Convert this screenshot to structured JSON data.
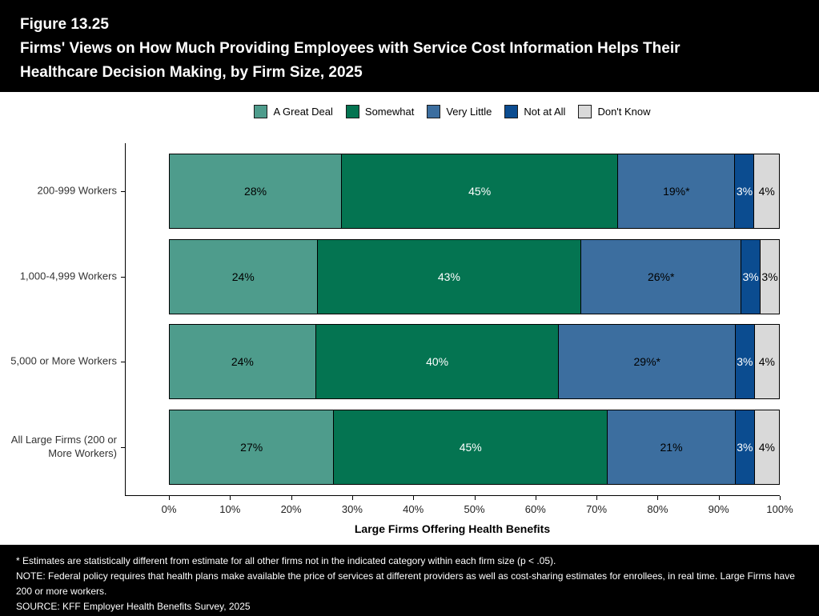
{
  "header": {
    "figure_label": "Figure 13.25",
    "title_line1": "Firms' Views on How Much Providing Employees with Service Cost Information Helps Their",
    "title_line2": "Healthcare Decision Making, by Firm Size, 2025"
  },
  "chart_data": {
    "type": "bar",
    "orientation": "horizontal",
    "stacked": true,
    "grid": false,
    "legend_position": "top",
    "categories": [
      "200-999 Workers",
      "1,000-4,999 Workers",
      "5,000 or More Workers",
      "All Large Firms (200 or\nMore Workers)"
    ],
    "series": [
      {
        "name": "A Great Deal",
        "color": "#4e9c8c",
        "label_color": "#000000",
        "values": [
          28,
          24,
          24,
          27
        ],
        "labels": [
          "28%",
          "24%",
          "24%",
          "27%"
        ]
      },
      {
        "name": "Somewhat",
        "color": "#047451",
        "label_color": "#ffffff",
        "values": [
          45,
          43,
          40,
          45
        ],
        "labels": [
          "45%",
          "43%",
          "40%",
          "45%"
        ]
      },
      {
        "name": "Very Little",
        "color": "#3c6e9f",
        "label_color": "#000000",
        "values": [
          19,
          26,
          29,
          21
        ],
        "labels": [
          "19%*",
          "26%*",
          "29%*",
          "21%"
        ]
      },
      {
        "name": "Not at All",
        "color": "#0b4c90",
        "label_color": "#ffffff",
        "values": [
          3,
          3,
          3,
          3
        ],
        "labels": [
          "3%",
          "3%",
          "3%",
          "3%"
        ]
      },
      {
        "name": "Don't Know",
        "color": "#d9d9d9",
        "label_color": "#000000",
        "values": [
          4,
          3,
          4,
          4
        ],
        "labels": [
          "4%",
          "3%",
          "4%",
          "4%"
        ]
      }
    ],
    "xlabel": "Large Firms Offering Health Benefits",
    "x_ticks": [
      "0%",
      "10%",
      "20%",
      "30%",
      "40%",
      "50%",
      "60%",
      "70%",
      "80%",
      "90%",
      "100%"
    ],
    "xlim": [
      0,
      100
    ]
  },
  "footnotes": {
    "significance": "* Estimates are statistically different from estimate for all other firms not in the indicated category within each firm size (p < .05).",
    "note": "NOTE: Federal policy requires that health plans make available the price of services at different providers as well as cost-sharing estimates for enrollees, in real time. Large Firms have 200 or more workers.",
    "source": "SOURCE: KFF Employer Health Benefits Survey, 2025"
  }
}
